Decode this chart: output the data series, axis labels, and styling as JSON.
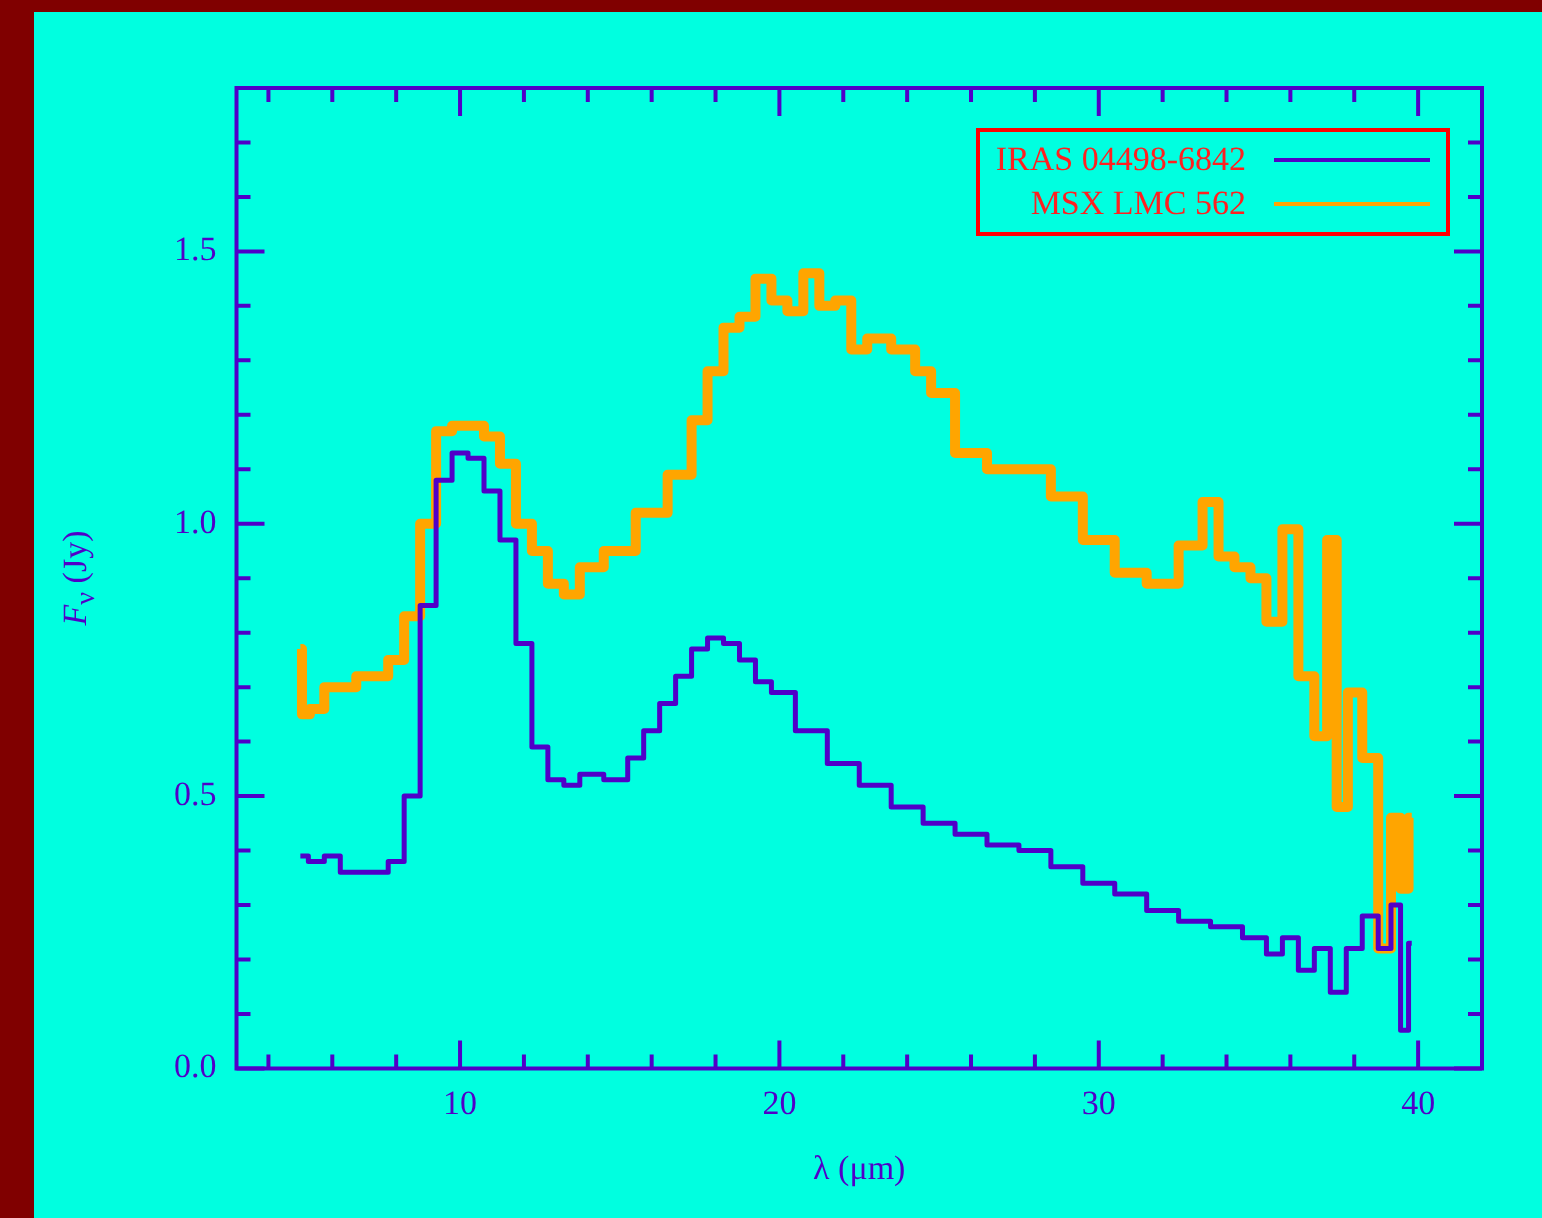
{
  "chart_data": {
    "type": "step",
    "xlabel": "λ (μm)",
    "ylabel": "F$_{ν}$ (Jy)",
    "xlim": [
      3,
      42
    ],
    "ylim": [
      0,
      1.8
    ],
    "xticks": [
      10,
      20,
      30,
      40
    ],
    "yticks": [
      {
        "value": 0,
        "label": "0.0"
      },
      0.5,
      {
        "value": 1,
        "label": "1.0"
      },
      1.5
    ],
    "grid": false,
    "legend": "top right",
    "series": [
      {
        "name": "IRAS 04498-6842",
        "color": "#5000c8",
        "x": [
          5.0,
          5.5,
          6.0,
          6.5,
          7.0,
          7.5,
          8.0,
          8.5,
          9.0,
          9.5,
          10.0,
          10.5,
          11.0,
          11.5,
          12.0,
          12.5,
          13.0,
          13.5,
          14.0,
          15.0,
          15.5,
          16.0,
          16.5,
          17.0,
          17.5,
          18.0,
          18.5,
          19.0,
          19.5,
          20.0,
          21,
          22,
          23,
          24,
          25,
          26,
          27,
          28,
          29,
          30,
          31,
          32,
          33,
          34,
          35,
          35.5,
          36,
          36.5,
          37,
          37.5,
          38,
          38.5,
          39,
          39.3,
          39.6,
          39.8
        ],
        "values": [
          0.39,
          0.38,
          0.39,
          0.36,
          0.36,
          0.36,
          0.38,
          0.5,
          0.85,
          1.08,
          1.13,
          1.12,
          1.06,
          0.97,
          0.78,
          0.59,
          0.53,
          0.52,
          0.54,
          0.53,
          0.57,
          0.62,
          0.67,
          0.72,
          0.77,
          0.79,
          0.78,
          0.75,
          0.71,
          0.69,
          0.62,
          0.56,
          0.52,
          0.48,
          0.45,
          0.43,
          0.41,
          0.4,
          0.37,
          0.34,
          0.32,
          0.29,
          0.27,
          0.26,
          0.24,
          0.21,
          0.24,
          0.18,
          0.22,
          0.14,
          0.22,
          0.28,
          0.22,
          0.3,
          0.07,
          0.23
        ]
      },
      {
        "name": "MSX LMC 562",
        "color": "#ffa500",
        "x": [
          5.0,
          5.1,
          5.5,
          6.0,
          6.5,
          7.0,
          7.5,
          8.0,
          8.5,
          9.0,
          9.5,
          10.0,
          10.5,
          11.0,
          11.5,
          12.0,
          12.5,
          13.0,
          13.5,
          14.0,
          15,
          16,
          17,
          17.5,
          18,
          18.5,
          19,
          19.5,
          20,
          20.5,
          21,
          21.5,
          22,
          22.5,
          23,
          24,
          24.5,
          25,
          26,
          27,
          28,
          29,
          30,
          31,
          32,
          33,
          33.5,
          34,
          34.5,
          35,
          35.5,
          36,
          36.5,
          37,
          37.3,
          37.6,
          38,
          38.5,
          39,
          39.3,
          39.6,
          39.8
        ],
        "values": [
          0.77,
          0.65,
          0.66,
          0.7,
          0.7,
          0.72,
          0.72,
          0.75,
          0.83,
          1.0,
          1.17,
          1.18,
          1.18,
          1.16,
          1.11,
          1.0,
          0.95,
          0.89,
          0.87,
          0.92,
          0.95,
          1.02,
          1.09,
          1.19,
          1.28,
          1.36,
          1.38,
          1.45,
          1.41,
          1.39,
          1.46,
          1.4,
          1.41,
          1.32,
          1.34,
          1.32,
          1.28,
          1.24,
          1.13,
          1.1,
          1.1,
          1.05,
          0.97,
          0.91,
          0.89,
          0.96,
          1.04,
          0.94,
          0.92,
          0.9,
          0.82,
          0.99,
          0.72,
          0.61,
          0.97,
          0.48,
          0.69,
          0.57,
          0.22,
          0.46,
          0.33,
          0.46
        ]
      }
    ]
  }
}
